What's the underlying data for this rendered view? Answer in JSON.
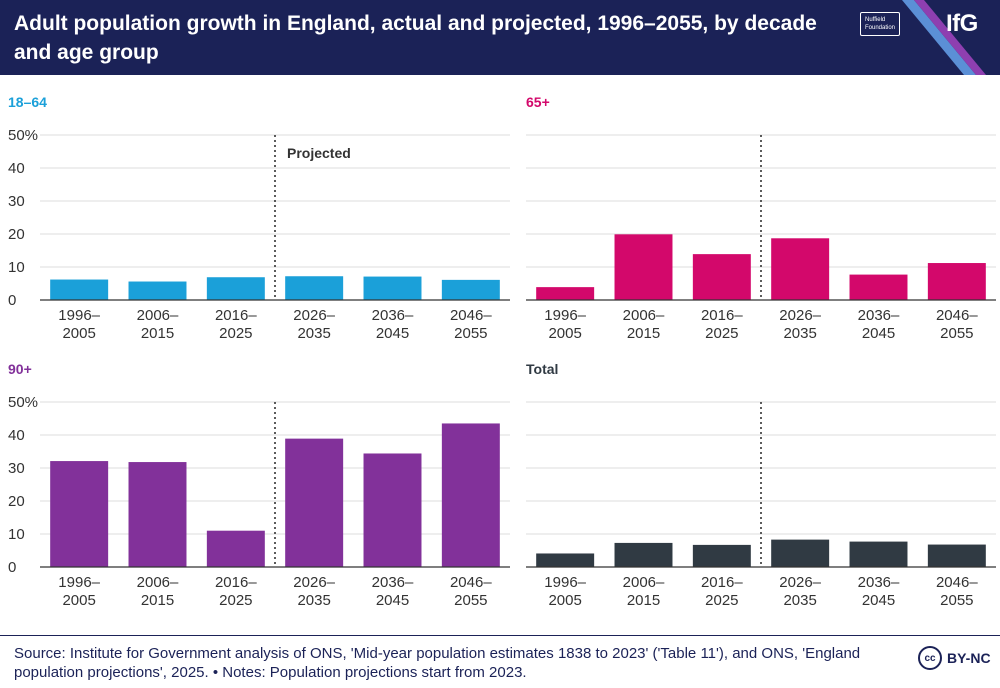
{
  "header": {
    "title": "Adult population growth in England, actual and projected, 1996–2055, by decade and age group",
    "partner_line1": "Nuffield",
    "partner_line2": "Foundation",
    "brand": "IfG",
    "colors": {
      "navy": "#1b2257",
      "stripe_blue": "#5b8fd6",
      "stripe_purple": "#8e3fb0"
    }
  },
  "chart_data": [
    {
      "type": "bar",
      "title": "18–64",
      "color": "#1ba0d9",
      "categories": [
        "1996–\n2005",
        "2006–\n2015",
        "2016–\n2025",
        "2026–\n2035",
        "2036–\n2045",
        "2046–\n2055"
      ],
      "values": [
        6.2,
        5.6,
        6.9,
        7.2,
        7.1,
        6.1
      ],
      "ylim": [
        0,
        50
      ],
      "yticks": [
        "0",
        "10",
        "20",
        "30",
        "40",
        "50%"
      ],
      "annotation": "Projected",
      "projection_starts_after": "2016–2025",
      "gridlines": true
    },
    {
      "type": "bar",
      "title": "65+",
      "color": "#d3086b",
      "categories": [
        "1996–\n2005",
        "2006–\n2015",
        "2016–\n2025",
        "2026–\n2035",
        "2036–\n2045",
        "2046–\n2055"
      ],
      "values": [
        3.9,
        19.9,
        13.9,
        18.7,
        7.7,
        11.2
      ],
      "ylim": [
        0,
        50
      ],
      "projection_starts_after": "2016–2025",
      "gridlines": true
    },
    {
      "type": "bar",
      "title": "90+",
      "color": "#82319a",
      "categories": [
        "1996–\n2005",
        "2006–\n2015",
        "2016–\n2025",
        "2026–\n2035",
        "2036–\n2045",
        "2046–\n2055"
      ],
      "values": [
        32.1,
        31.8,
        11.0,
        38.9,
        34.4,
        43.5
      ],
      "ylim": [
        0,
        50
      ],
      "yticks": [
        "0",
        "10",
        "20",
        "30",
        "40",
        "50%"
      ],
      "projection_starts_after": "2016–2025",
      "gridlines": true
    },
    {
      "type": "bar",
      "title": "Total",
      "color": "#303a43",
      "categories": [
        "1996–\n2005",
        "2006–\n2015",
        "2016–\n2025",
        "2026–\n2035",
        "2036–\n2045",
        "2046–\n2055"
      ],
      "values": [
        4.1,
        7.3,
        6.7,
        8.3,
        7.7,
        6.8
      ],
      "ylim": [
        0,
        50
      ],
      "projection_starts_after": "2016–2025",
      "gridlines": true
    }
  ],
  "footer": {
    "source": "Source: Institute for Government analysis of ONS, 'Mid-year population estimates 1838 to 2023' ('Table 11'), and ONS, 'England population projections', 2025. • Notes: Population projections start from 2023.",
    "license_icon": "cc",
    "license_text": "BY-NC"
  }
}
